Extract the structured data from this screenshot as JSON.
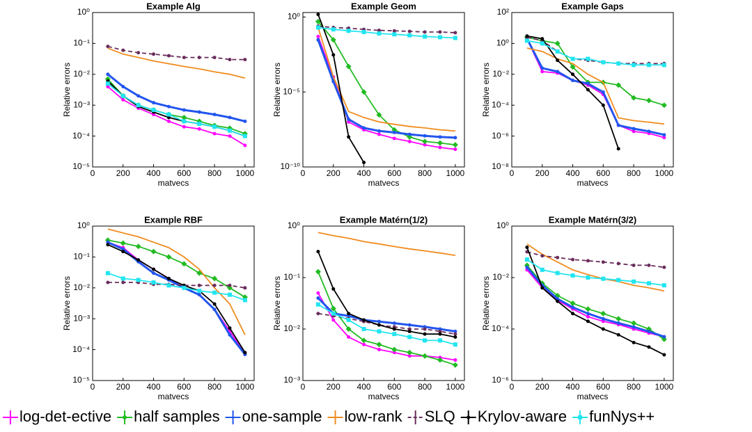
{
  "legend": [
    {
      "name": "log-det-ective",
      "color": "#ff00ff",
      "marker": "bar"
    },
    {
      "name": "half samples",
      "color": "#22bb22",
      "marker": "diamond"
    },
    {
      "name": "one-sample",
      "color": "#2255ee",
      "marker": "bar"
    },
    {
      "name": "low-rank",
      "color": "#f08c1e",
      "marker": "none"
    },
    {
      "name": "SLQ",
      "color": "#6b2d5c",
      "marker": "bar",
      "dashed": true
    },
    {
      "name": "Krylov-aware",
      "color": "#000000",
      "marker": "dot"
    },
    {
      "name": "funNys++",
      "color": "#22e5f0",
      "marker": "square"
    }
  ],
  "chart_data": [
    {
      "type": "line",
      "title": "Example Alg",
      "xlabel": "matvecs",
      "ylabel": "Relative errors",
      "log_y": true,
      "x": [
        100,
        200,
        300,
        400,
        500,
        600,
        700,
        800,
        900,
        1000
      ],
      "xlim": [
        0,
        1060
      ],
      "xticks": [
        0,
        200,
        400,
        600,
        800,
        1000
      ],
      "ylim": [
        1e-05,
        1
      ],
      "yticks": [
        {
          "value": 1e-05,
          "label": "10⁻⁵"
        },
        {
          "value": 0.0001,
          "label": "10⁻⁴"
        },
        {
          "value": 0.001,
          "label": "10⁻³"
        },
        {
          "value": 0.01,
          "label": "10⁻²"
        },
        {
          "value": 0.1,
          "label": "10⁻¹"
        },
        {
          "value": 1,
          "label": "10⁰"
        }
      ],
      "series": [
        {
          "values": [
            0.004,
            0.0015,
            0.0008,
            0.0005,
            0.0003,
            0.0002,
            0.00017,
            0.00012,
            0.0001,
            5e-05
          ]
        },
        {
          "values": [
            0.007,
            0.002,
            0.001,
            0.0007,
            0.0005,
            0.0004,
            0.0003,
            0.00022,
            0.00018,
            0.00012
          ]
        },
        {
          "values": [
            0.01,
            0.004,
            0.002,
            0.0012,
            0.0009,
            0.0007,
            0.0006,
            0.0005,
            0.0004,
            0.0003
          ]
        },
        {
          "values": [
            0.07,
            0.045,
            0.035,
            0.027,
            0.022,
            0.018,
            0.015,
            0.012,
            0.01,
            0.0075
          ]
        },
        {
          "values": [
            0.08,
            0.06,
            0.05,
            0.045,
            0.04,
            0.035,
            0.035,
            0.035,
            0.03,
            0.03
          ]
        },
        {
          "values": [
            0.006,
            0.002,
            0.0009,
            0.0006,
            0.0004,
            0.0003,
            0.00025,
            0.0002,
            0.00015,
            0.0001
          ]
        },
        {
          "values": [
            0.005,
            0.002,
            0.001,
            0.0007,
            0.0005,
            0.0003,
            0.00025,
            0.0002,
            0.00015,
            0.0001
          ]
        }
      ]
    },
    {
      "type": "line",
      "title": "Example Geom",
      "xlabel": "matvecs",
      "ylabel": "Relative errors",
      "log_y": true,
      "x": [
        100,
        200,
        300,
        400,
        500,
        600,
        700,
        800,
        900,
        1000
      ],
      "xlim": [
        0,
        1060
      ],
      "xticks": [
        0,
        200,
        400,
        600,
        800,
        1000
      ],
      "ylim": [
        1e-10,
        2
      ],
      "yticks": [
        {
          "value": 1e-10,
          "label": "10⁻¹⁰"
        },
        {
          "value": 1e-05,
          "label": "10⁻⁵"
        },
        {
          "value": 1,
          "label": "10⁰"
        }
      ],
      "series": [
        {
          "values": [
            0.05,
            0.0001,
            1e-07,
            3e-08,
            1.5e-08,
            8e-09,
            5e-09,
            3e-09,
            2e-09,
            1.5e-09
          ]
        },
        {
          "values": [
            0.5,
            0.03,
            0.0005,
            1e-05,
            3e-07,
            3e-08,
            1e-08,
            5e-09,
            4e-09,
            3e-09
          ]
        },
        {
          "values": [
            0.03,
            5e-05,
            1.5e-07,
            4e-08,
            2.5e-08,
            2e-08,
            1.5e-08,
            1.2e-08,
            1e-08,
            9e-09
          ]
        },
        {
          "values": [
            0.2,
            0.0001,
            5e-07,
            2e-07,
            1e-07,
            7e-08,
            5e-08,
            4e-08,
            3e-08,
            2.5e-08
          ]
        },
        {
          "values": [
            0.25,
            0.2,
            0.18,
            0.15,
            0.13,
            0.12,
            0.11,
            0.1,
            0.1,
            0.09
          ]
        },
        {
          "values": [
            1.5,
            0.003,
            1e-08,
            2e-10,
            null,
            null,
            null,
            null,
            null,
            null
          ]
        },
        {
          "values": [
            0.2,
            0.15,
            0.12,
            0.1,
            0.08,
            0.07,
            0.06,
            0.05,
            0.045,
            0.04
          ]
        }
      ]
    },
    {
      "type": "line",
      "title": "Example Gaps",
      "xlabel": "matvecs",
      "ylabel": "Relative errors",
      "log_y": true,
      "x": [
        100,
        200,
        300,
        400,
        500,
        600,
        700,
        800,
        900,
        1000
      ],
      "xlim": [
        0,
        1060
      ],
      "xticks": [
        0,
        200,
        400,
        600,
        800,
        1000
      ],
      "ylim": [
        1e-08,
        100
      ],
      "yticks": [
        {
          "value": 1e-08,
          "label": "10⁻⁸"
        },
        {
          "value": 1e-06,
          "label": "10⁻⁶"
        },
        {
          "value": 0.0001,
          "label": "10⁻⁴"
        },
        {
          "value": 0.01,
          "label": "10⁻²"
        },
        {
          "value": 1,
          "label": "10⁰"
        },
        {
          "value": 100,
          "label": "10²"
        }
      ],
      "series": [
        {
          "values": [
            2,
            0.015,
            0.012,
            0.004,
            0.002,
            0.0005,
            5e-06,
            2e-06,
            1.5e-06,
            8e-07
          ]
        },
        {
          "values": [
            2.5,
            1.5,
            1,
            0.03,
            0.003,
            0.003,
            0.002,
            0.0003,
            0.0002,
            0.0001
          ]
        },
        {
          "values": [
            2,
            0.025,
            0.015,
            0.004,
            0.0025,
            0.0007,
            5e-06,
            3e-06,
            2e-06,
            1.2e-06
          ]
        },
        {
          "values": [
            0.5,
            0.3,
            0.1,
            0.05,
            0.01,
            0.003,
            1.5e-05,
            1e-05,
            8e-06,
            6e-06
          ]
        },
        {
          "values": [
            2.5,
            1.5,
            0.3,
            0.1,
            0.08,
            0.06,
            0.05,
            0.05,
            0.05,
            0.05
          ]
        },
        {
          "values": [
            3,
            2,
            0.08,
            0.01,
            0.001,
            0.0001,
            1.5e-07,
            null,
            null,
            null
          ]
        },
        {
          "values": [
            1.5,
            1,
            0.3,
            0.1,
            0.1,
            0.06,
            0.05,
            0.04,
            0.04,
            0.04
          ]
        }
      ]
    },
    {
      "type": "line",
      "title": "Example RBF",
      "xlabel": "matvecs",
      "ylabel": "Relative errors",
      "log_y": true,
      "x": [
        100,
        200,
        300,
        400,
        500,
        600,
        700,
        800,
        900,
        1000
      ],
      "xlim": [
        0,
        1060
      ],
      "xticks": [
        0,
        200,
        400,
        600,
        800,
        1000
      ],
      "ylim": [
        1e-05,
        1
      ],
      "yticks": [
        {
          "value": 1e-05,
          "label": "10⁻⁵"
        },
        {
          "value": 0.0001,
          "label": "10⁻⁴"
        },
        {
          "value": 0.001,
          "label": "10⁻³"
        },
        {
          "value": 0.01,
          "label": "10⁻²"
        },
        {
          "value": 0.1,
          "label": "10⁻¹"
        },
        {
          "value": 1,
          "label": "10⁰"
        }
      ],
      "series": [
        {
          "values": [
            0.3,
            0.2,
            0.08,
            0.04,
            0.02,
            0.01,
            0.006,
            0.002,
            0.0004,
            7e-05
          ]
        },
        {
          "values": [
            0.35,
            0.28,
            0.22,
            0.15,
            0.1,
            0.06,
            0.03,
            0.02,
            0.01,
            0.005
          ]
        },
        {
          "values": [
            0.3,
            0.18,
            0.07,
            0.03,
            0.018,
            0.01,
            0.006,
            0.002,
            0.0003,
            7e-05
          ]
        },
        {
          "values": [
            0.8,
            0.6,
            0.45,
            0.3,
            0.2,
            0.1,
            0.04,
            0.01,
            0.003,
            0.0003
          ]
        },
        {
          "values": [
            0.015,
            0.015,
            0.015,
            0.013,
            0.013,
            0.012,
            0.012,
            0.012,
            0.012,
            0.01
          ]
        },
        {
          "values": [
            0.25,
            0.15,
            0.08,
            0.04,
            0.02,
            0.012,
            0.008,
            0.003,
            0.0005,
            8e-05
          ]
        },
        {
          "values": [
            0.03,
            0.02,
            0.018,
            0.015,
            0.012,
            0.01,
            0.008,
            0.007,
            0.006,
            0.004
          ]
        }
      ]
    },
    {
      "type": "line",
      "title": "Example Matérn(1/2)",
      "xlabel": "matvecs",
      "ylabel": "Relative errors",
      "log_y": true,
      "x": [
        100,
        200,
        300,
        400,
        500,
        600,
        700,
        800,
        900,
        1000
      ],
      "xlim": [
        0,
        1060
      ],
      "xticks": [
        0,
        200,
        400,
        600,
        800,
        1000
      ],
      "ylim": [
        0.001,
        1
      ],
      "yticks": [
        {
          "value": 0.001,
          "label": "10⁻³"
        },
        {
          "value": 0.01,
          "label": "10⁻²"
        },
        {
          "value": 0.1,
          "label": "10⁻¹"
        },
        {
          "value": 1,
          "label": "10⁰"
        }
      ],
      "series": [
        {
          "values": [
            0.05,
            0.015,
            0.007,
            0.005,
            0.004,
            0.0035,
            0.003,
            0.003,
            0.0028,
            0.0025
          ]
        },
        {
          "values": [
            0.13,
            0.025,
            0.01,
            0.006,
            0.005,
            0.004,
            0.0035,
            0.003,
            0.0025,
            0.002
          ]
        },
        {
          "values": [
            0.04,
            0.02,
            0.018,
            0.015,
            0.014,
            0.013,
            0.012,
            0.011,
            0.01,
            0.009
          ]
        },
        {
          "values": [
            0.75,
            0.65,
            0.58,
            0.5,
            0.45,
            0.4,
            0.36,
            0.33,
            0.3,
            0.27
          ]
        },
        {
          "values": [
            0.02,
            0.018,
            0.016,
            0.014,
            0.012,
            0.011,
            0.01,
            0.01,
            0.009,
            0.008
          ]
        },
        {
          "values": [
            0.32,
            0.06,
            0.02,
            0.015,
            0.012,
            0.01,
            0.009,
            0.008,
            0.008,
            0.007
          ]
        },
        {
          "values": [
            0.03,
            0.02,
            0.015,
            0.01,
            0.009,
            0.008,
            0.007,
            0.006,
            0.006,
            0.005
          ]
        }
      ]
    },
    {
      "type": "line",
      "title": "Example Matérn(3/2)",
      "xlabel": "matvecs",
      "ylabel": "Relative errors",
      "log_y": true,
      "x": [
        100,
        200,
        300,
        400,
        500,
        600,
        700,
        800,
        900,
        1000
      ],
      "xlim": [
        0,
        1060
      ],
      "xticks": [
        0,
        200,
        400,
        600,
        800,
        1000
      ],
      "ylim": [
        1e-06,
        1
      ],
      "yticks": [
        {
          "value": 1e-06,
          "label": "10⁻⁶"
        },
        {
          "value": 0.0001,
          "label": "10⁻⁴"
        },
        {
          "value": 0.01,
          "label": "10⁻²"
        },
        {
          "value": 1,
          "label": "10⁰"
        }
      ],
      "series": [
        {
          "values": [
            0.02,
            0.004,
            0.0013,
            0.0006,
            0.0003,
            0.0002,
            0.00015,
            0.0001,
            7e-05,
            5e-05
          ]
        },
        {
          "values": [
            0.03,
            0.006,
            0.002,
            0.001,
            0.0006,
            0.0004,
            0.00025,
            0.00017,
            0.0001,
            4e-05
          ]
        },
        {
          "values": [
            0.025,
            0.005,
            0.0015,
            0.0007,
            0.0004,
            0.00025,
            0.00017,
            0.00012,
            8e-05,
            5e-05
          ]
        },
        {
          "values": [
            0.2,
            0.08,
            0.04,
            0.02,
            0.013,
            0.009,
            0.007,
            0.005,
            0.004,
            0.003
          ]
        },
        {
          "values": [
            0.1,
            0.07,
            0.06,
            0.05,
            0.045,
            0.04,
            0.035,
            0.03,
            0.03,
            0.025
          ]
        },
        {
          "values": [
            0.15,
            0.004,
            0.0012,
            0.0004,
            0.0002,
            0.0001,
            6e-05,
            3e-05,
            2e-05,
            1e-05
          ]
        },
        {
          "values": [
            0.05,
            0.02,
            0.015,
            0.012,
            0.01,
            0.009,
            0.008,
            0.007,
            0.006,
            0.005
          ]
        }
      ]
    }
  ]
}
